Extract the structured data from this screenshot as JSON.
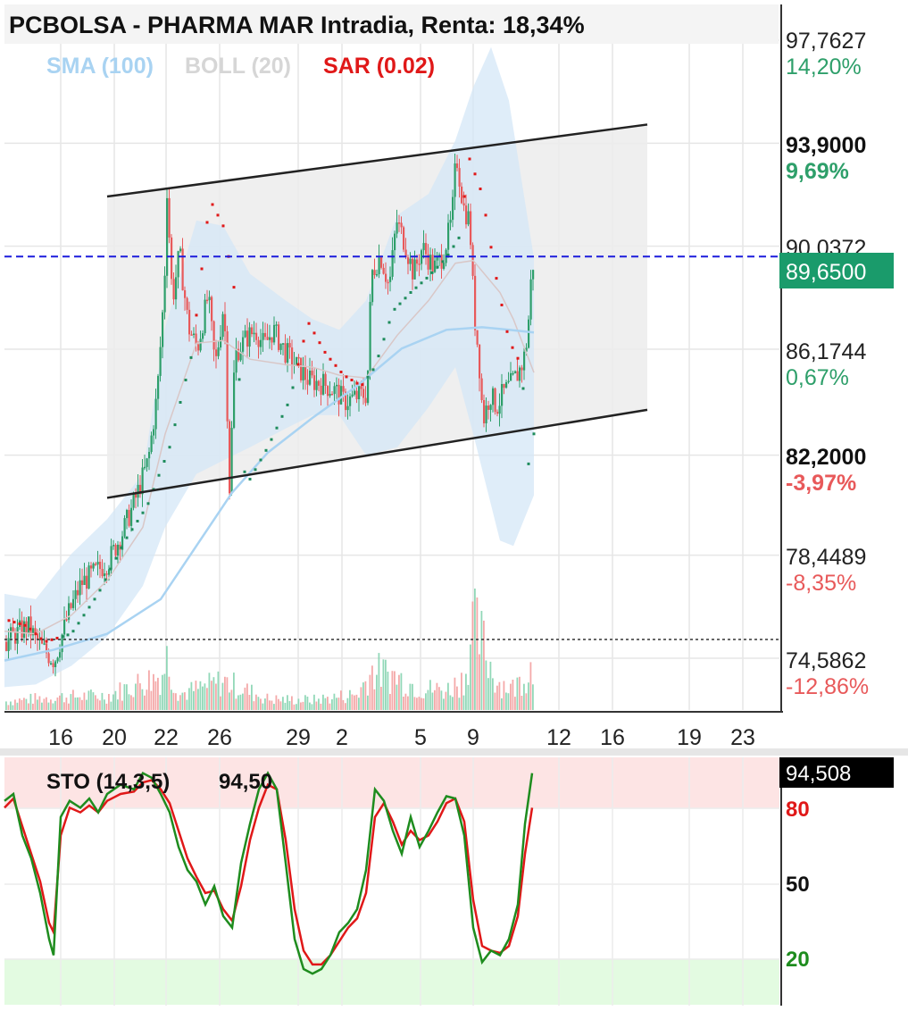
{
  "title": "PCBOLSA - PHARMA MAR Intradia, Renta: 18,34%",
  "indicators": [
    {
      "label": "SMA (100)",
      "color": "#a9d3f2"
    },
    {
      "label": "BOLL (20)",
      "color": "#d6d6d6"
    },
    {
      "label": "SAR (0.02)",
      "color": "#e01818"
    }
  ],
  "colors": {
    "up": "#2e9f6a",
    "down": "#e8595a",
    "sma": "#a9d3f2",
    "boll_band": "#d4e7f7",
    "channel_fill": "#ececec",
    "last_price": "#1a9b6b",
    "current_line": "#1c1cdc",
    "sto_k": "#1e8c1e",
    "sto_d": "#e01818",
    "overbought": "#fde4e4",
    "oversold": "#e3fbe1"
  },
  "y_axis": {
    "ticks": [
      {
        "value": "97,7627",
        "pct": "14,20%",
        "bold": false,
        "sign": "pos"
      },
      {
        "value": "93,9000",
        "pct": "9,69%",
        "bold": true,
        "sign": "pos"
      },
      {
        "value": "90,0372",
        "pct": "",
        "bold": false,
        "sign": "pos"
      },
      {
        "value": "86,1744",
        "pct": "0,67%",
        "bold": false,
        "sign": "pos"
      },
      {
        "value": "82,2000",
        "pct": "-3,97%",
        "bold": true,
        "sign": "neg"
      },
      {
        "value": "78,4489",
        "pct": "-8,35%",
        "bold": false,
        "sign": "neg"
      },
      {
        "value": "74,5862",
        "pct": "-12,86%",
        "bold": false,
        "sign": "neg"
      }
    ],
    "last_price": "89,6500"
  },
  "x_axis": {
    "ticks": [
      "16",
      "20",
      "22",
      "26",
      "29",
      "2",
      "5",
      "9",
      "12",
      "16",
      "19",
      "23"
    ]
  },
  "stochastic": {
    "label": "STO (14,3,5)",
    "value": "94,50",
    "current": "94,508",
    "levels": [
      "80",
      "50",
      "20"
    ]
  },
  "chart_data": {
    "type": "line",
    "title": "PCBOLSA - PHARMA MAR Intradia, Renta: 18,34%",
    "ylim": [
      73.0,
      98.5
    ],
    "last_price": 89.65,
    "reference_price": 85.55,
    "channel": {
      "upper": [
        [
          120,
          91.9
        ],
        [
          725,
          94.6
        ]
      ],
      "lower": [
        [
          120,
          80.6
        ],
        [
          725,
          83.9
        ]
      ]
    },
    "price_path": [
      [
        5,
        75.2
      ],
      [
        30,
        75.8
      ],
      [
        45,
        75.0
      ],
      [
        60,
        74.5
      ],
      [
        75,
        76.2
      ],
      [
        90,
        77.4
      ],
      [
        105,
        77.8
      ],
      [
        120,
        78.2
      ],
      [
        135,
        79.2
      ],
      [
        150,
        80.5
      ],
      [
        165,
        82.0
      ],
      [
        175,
        84.5
      ],
      [
        183,
        88.5
      ],
      [
        186,
        92.2
      ],
      [
        192,
        88.0
      ],
      [
        200,
        89.8
      ],
      [
        210,
        87.0
      ],
      [
        220,
        86.2
      ],
      [
        232,
        88.2
      ],
      [
        240,
        85.5
      ],
      [
        250,
        88.0
      ],
      [
        256,
        81.0
      ],
      [
        262,
        86.0
      ],
      [
        275,
        86.6
      ],
      [
        285,
        86.9
      ],
      [
        295,
        86.3
      ],
      [
        305,
        86.9
      ],
      [
        318,
        86.1
      ],
      [
        330,
        85.6
      ],
      [
        345,
        85.0
      ],
      [
        360,
        84.9
      ],
      [
        375,
        84.6
      ],
      [
        385,
        84.2
      ],
      [
        398,
        84.4
      ],
      [
        410,
        84.5
      ],
      [
        415,
        89.0
      ],
      [
        425,
        89.7
      ],
      [
        435,
        88.5
      ],
      [
        443,
        91.0
      ],
      [
        452,
        90.2
      ],
      [
        462,
        89.0
      ],
      [
        472,
        90.0
      ],
      [
        485,
        89.2
      ],
      [
        495,
        89.7
      ],
      [
        505,
        91.0
      ],
      [
        510,
        93.5
      ],
      [
        518,
        91.5
      ],
      [
        525,
        91.0
      ],
      [
        530,
        87.5
      ],
      [
        535,
        86.0
      ],
      [
        540,
        83.5
      ],
      [
        548,
        84.5
      ],
      [
        555,
        84.0
      ],
      [
        562,
        84.5
      ],
      [
        570,
        84.8
      ],
      [
        578,
        85.2
      ],
      [
        585,
        85.7
      ],
      [
        590,
        86.7
      ],
      [
        593,
        88.5
      ],
      [
        597,
        89.65
      ]
    ],
    "series": [
      {
        "values": [
          [
            5,
            74.5
          ],
          [
            60,
            74.9
          ],
          [
            120,
            75.5
          ],
          [
            180,
            76.8
          ],
          [
            220,
            78.8
          ],
          [
            260,
            80.8
          ],
          [
            300,
            82.3
          ],
          [
            350,
            83.6
          ],
          [
            400,
            84.8
          ],
          [
            450,
            86.2
          ],
          [
            500,
            86.9
          ],
          [
            540,
            87.0
          ],
          [
            570,
            86.9
          ],
          [
            598,
            86.8
          ]
        ]
      },
      {
        "values": [
          [
            5,
            77.0
          ],
          [
            40,
            76.8
          ],
          [
            80,
            78.5
          ],
          [
            120,
            79.8
          ],
          [
            160,
            81.5
          ],
          [
            185,
            87.0
          ],
          [
            220,
            91.0
          ],
          [
            250,
            90.8
          ],
          [
            280,
            89.0
          ],
          [
            320,
            88.0
          ],
          [
            350,
            87.3
          ],
          [
            380,
            86.9
          ],
          [
            410,
            88.0
          ],
          [
            445,
            91.2
          ],
          [
            480,
            92.0
          ],
          [
            510,
            94.0
          ],
          [
            530,
            96.0
          ],
          [
            550,
            97.5
          ],
          [
            570,
            95.5
          ],
          [
            598,
            89.6
          ]
        ]
      },
      {
        "values": [
          [
            5,
            73.5
          ],
          [
            40,
            73.6
          ],
          [
            80,
            74.3
          ],
          [
            120,
            75.4
          ],
          [
            160,
            77.3
          ],
          [
            185,
            79.5
          ],
          [
            220,
            81.5
          ],
          [
            250,
            82.0
          ],
          [
            280,
            82.5
          ],
          [
            320,
            83.2
          ],
          [
            350,
            83.7
          ],
          [
            380,
            83.7
          ],
          [
            410,
            82.2
          ],
          [
            445,
            82.5
          ],
          [
            480,
            84.0
          ],
          [
            510,
            85.5
          ],
          [
            530,
            83.0
          ],
          [
            560,
            79.0
          ],
          [
            575,
            78.8
          ],
          [
            598,
            80.7
          ]
        ]
      },
      {
        "values": [
          [
            5,
            75.6
          ],
          [
            40,
            75.5
          ],
          [
            80,
            76.2
          ],
          [
            120,
            77.5
          ],
          [
            160,
            79.5
          ],
          [
            185,
            83.0
          ],
          [
            220,
            86.4
          ],
          [
            250,
            86.5
          ],
          [
            280,
            85.8
          ],
          [
            320,
            85.6
          ],
          [
            350,
            85.5
          ],
          [
            380,
            85.2
          ],
          [
            410,
            85.1
          ],
          [
            445,
            86.7
          ],
          [
            480,
            88.0
          ],
          [
            510,
            89.4
          ],
          [
            530,
            89.5
          ],
          [
            560,
            88.3
          ],
          [
            575,
            87.3
          ],
          [
            598,
            85.3
          ]
        ]
      },
      {
        "values": [
          [
            10,
            76.0
          ],
          [
            30,
            75.8
          ],
          [
            50,
            75.2
          ],
          [
            80,
            75.5
          ],
          [
            110,
            77.0
          ],
          [
            140,
            79.0
          ],
          [
            165,
            80.3
          ],
          [
            190,
            82.5
          ],
          [
            215,
            86.0
          ],
          [
            235,
            91.8
          ],
          [
            250,
            90.8
          ],
          [
            262,
            88.5
          ],
          [
            275,
            81.0
          ],
          [
            300,
            82.5
          ],
          [
            325,
            84.3
          ],
          [
            345,
            87.2
          ],
          [
            365,
            86.0
          ],
          [
            385,
            85.2
          ],
          [
            405,
            84.8
          ],
          [
            420,
            85.5
          ],
          [
            440,
            87.6
          ],
          [
            460,
            88.3
          ],
          [
            480,
            88.9
          ],
          [
            500,
            89.6
          ],
          [
            515,
            90.4
          ],
          [
            525,
            93.4
          ],
          [
            540,
            92.0
          ],
          [
            555,
            89.0
          ],
          [
            570,
            86.5
          ],
          [
            585,
            85.5
          ],
          [
            590,
            81.5
          ],
          [
            598,
            83.0
          ]
        ]
      }
    ],
    "volume_path": [
      [
        5,
        12
      ],
      [
        60,
        18
      ],
      [
        120,
        20
      ],
      [
        150,
        35
      ],
      [
        180,
        48
      ],
      [
        186,
        72
      ],
      [
        200,
        22
      ],
      [
        250,
        40
      ],
      [
        300,
        15
      ],
      [
        350,
        14
      ],
      [
        400,
        22
      ],
      [
        415,
        55
      ],
      [
        440,
        48
      ],
      [
        470,
        30
      ],
      [
        500,
        28
      ],
      [
        520,
        45
      ],
      [
        528,
        118
      ],
      [
        540,
        92
      ],
      [
        555,
        40
      ],
      [
        575,
        30
      ],
      [
        595,
        62
      ],
      [
        598,
        25
      ]
    ],
    "stochastic": {
      "ylim": [
        0,
        100
      ],
      "overbought": 80,
      "oversold": 20,
      "k": [
        [
          5,
          85
        ],
        [
          15,
          88
        ],
        [
          25,
          70
        ],
        [
          35,
          60
        ],
        [
          45,
          45
        ],
        [
          55,
          25
        ],
        [
          60,
          18
        ],
        [
          68,
          78
        ],
        [
          78,
          85
        ],
        [
          90,
          82
        ],
        [
          100,
          86
        ],
        [
          110,
          80
        ],
        [
          120,
          88
        ],
        [
          135,
          92
        ],
        [
          150,
          90
        ],
        [
          160,
          97
        ],
        [
          170,
          95
        ],
        [
          180,
          88
        ],
        [
          190,
          80
        ],
        [
          200,
          65
        ],
        [
          210,
          55
        ],
        [
          220,
          50
        ],
        [
          230,
          40
        ],
        [
          240,
          48
        ],
        [
          250,
          35
        ],
        [
          260,
          30
        ],
        [
          270,
          58
        ],
        [
          280,
          75
        ],
        [
          290,
          90
        ],
        [
          300,
          97
        ],
        [
          310,
          90
        ],
        [
          320,
          58
        ],
        [
          330,
          25
        ],
        [
          340,
          12
        ],
        [
          350,
          10
        ],
        [
          360,
          12
        ],
        [
          370,
          18
        ],
        [
          380,
          28
        ],
        [
          390,
          32
        ],
        [
          400,
          38
        ],
        [
          410,
          55
        ],
        [
          420,
          90
        ],
        [
          430,
          85
        ],
        [
          440,
          72
        ],
        [
          450,
          62
        ],
        [
          460,
          78
        ],
        [
          470,
          65
        ],
        [
          480,
          72
        ],
        [
          490,
          80
        ],
        [
          500,
          87
        ],
        [
          510,
          86
        ],
        [
          520,
          70
        ],
        [
          530,
          30
        ],
        [
          540,
          15
        ],
        [
          550,
          20
        ],
        [
          560,
          18
        ],
        [
          570,
          25
        ],
        [
          580,
          40
        ],
        [
          588,
          75
        ],
        [
          596,
          97
        ]
      ],
      "d": [
        [
          5,
          82
        ],
        [
          15,
          86
        ],
        [
          25,
          74
        ],
        [
          35,
          62
        ],
        [
          45,
          50
        ],
        [
          55,
          32
        ],
        [
          60,
          28
        ],
        [
          68,
          70
        ],
        [
          78,
          82
        ],
        [
          90,
          80
        ],
        [
          100,
          83
        ],
        [
          110,
          80
        ],
        [
          120,
          85
        ],
        [
          135,
          88
        ],
        [
          150,
          89
        ],
        [
          160,
          93
        ],
        [
          170,
          94
        ],
        [
          180,
          90
        ],
        [
          190,
          84
        ],
        [
          200,
          72
        ],
        [
          210,
          60
        ],
        [
          220,
          52
        ],
        [
          230,
          45
        ],
        [
          240,
          46
        ],
        [
          250,
          38
        ],
        [
          260,
          33
        ],
        [
          270,
          48
        ],
        [
          280,
          68
        ],
        [
          290,
          82
        ],
        [
          300,
          92
        ],
        [
          310,
          90
        ],
        [
          320,
          68
        ],
        [
          330,
          38
        ],
        [
          340,
          20
        ],
        [
          350,
          14
        ],
        [
          360,
          14
        ],
        [
          370,
          18
        ],
        [
          380,
          24
        ],
        [
          390,
          30
        ],
        [
          400,
          34
        ],
        [
          410,
          45
        ],
        [
          420,
          78
        ],
        [
          430,
          84
        ],
        [
          440,
          76
        ],
        [
          450,
          66
        ],
        [
          460,
          72
        ],
        [
          470,
          68
        ],
        [
          480,
          70
        ],
        [
          490,
          76
        ],
        [
          500,
          84
        ],
        [
          510,
          86
        ],
        [
          520,
          76
        ],
        [
          530,
          42
        ],
        [
          540,
          22
        ],
        [
          550,
          20
        ],
        [
          560,
          19
        ],
        [
          570,
          22
        ],
        [
          580,
          35
        ],
        [
          588,
          62
        ],
        [
          596,
          82
        ]
      ]
    }
  }
}
